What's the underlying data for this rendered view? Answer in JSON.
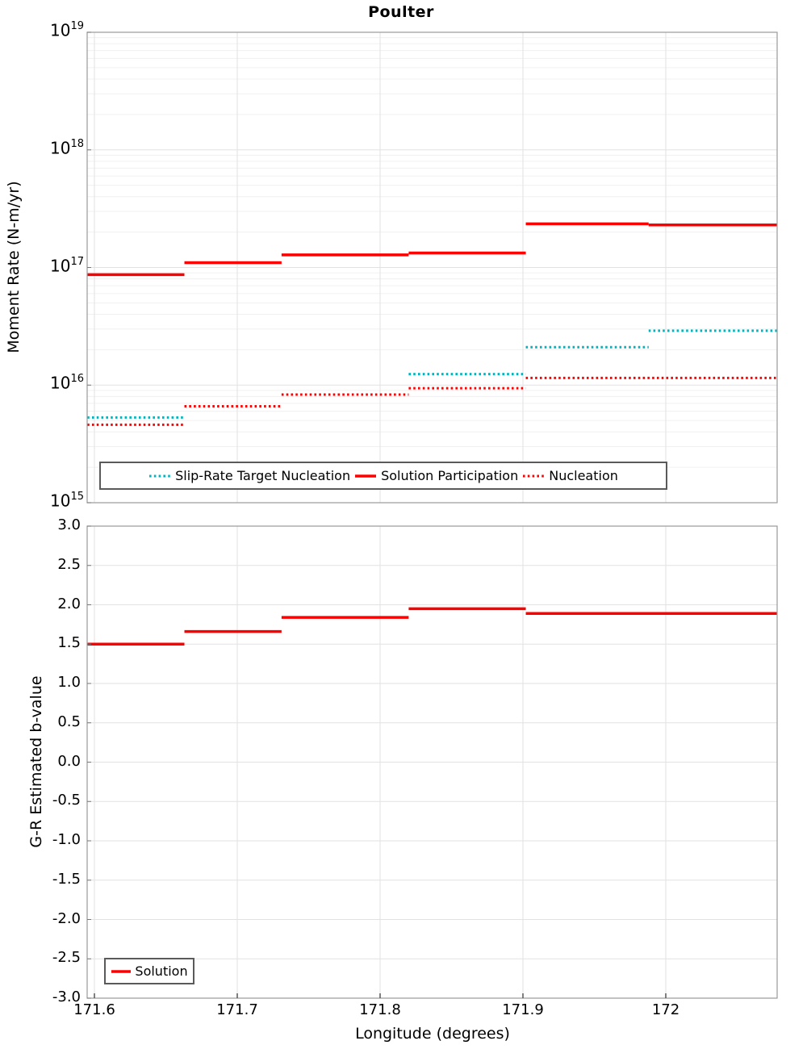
{
  "figure_title": "Poulter",
  "colors": {
    "series_red": "#FF0000",
    "series_cyan": "#00B3BC",
    "grid_minor": "#F0F0F0",
    "grid_major": "#E2E2E2",
    "plot_border": "#9A9A9A",
    "legend_border": "#5A5A5A"
  },
  "chart_data": [
    {
      "type": "line",
      "subtype": "step-segments",
      "title": "Poulter",
      "ylabel": "Moment Rate (N-m/yr)",
      "yscale": "log",
      "ylim": [
        1000000000000000.0,
        1e+19
      ],
      "y_tick_exponents": [
        19,
        18,
        17,
        16,
        15
      ],
      "xlim": [
        171.595,
        172.078
      ],
      "x_ticks": [
        {
          "label": "171.6",
          "value": 171.6
        },
        {
          "label": "171.7",
          "value": 171.7
        },
        {
          "label": "171.8",
          "value": 171.8
        },
        {
          "label": "171.9",
          "value": 171.9
        },
        {
          "label": "172",
          "value": 172.0
        }
      ],
      "grid": true,
      "legend_position": "inside-bottom-left",
      "series": [
        {
          "name": "Slip-Rate Target Nucleation",
          "color": "#00B3BC",
          "style": "dotted",
          "segments": [
            {
              "x1": 171.595,
              "x2": 171.663,
              "y": 5300000000000000.0
            },
            {
              "x1": 171.82,
              "x2": 171.902,
              "y": 1.24e+16
            },
            {
              "x1": 171.902,
              "x2": 171.988,
              "y": 2.1e+16
            },
            {
              "x1": 171.988,
              "x2": 172.078,
              "y": 2.9e+16
            }
          ]
        },
        {
          "name": "Solution Participation",
          "color": "#FF0000",
          "style": "solid",
          "segments": [
            {
              "x1": 171.595,
              "x2": 171.663,
              "y": 8.7e+16
            },
            {
              "x1": 171.663,
              "x2": 171.731,
              "y": 1.1e+17
            },
            {
              "x1": 171.731,
              "x2": 171.82,
              "y": 1.28e+17
            },
            {
              "x1": 171.82,
              "x2": 171.902,
              "y": 1.33e+17
            },
            {
              "x1": 171.902,
              "x2": 171.988,
              "y": 2.35e+17
            },
            {
              "x1": 171.988,
              "x2": 172.078,
              "y": 2.3e+17
            }
          ]
        },
        {
          "name": "Nucleation",
          "color": "#FF0000",
          "style": "dotted",
          "segments": [
            {
              "x1": 171.595,
              "x2": 171.663,
              "y": 4600000000000000.0
            },
            {
              "x1": 171.663,
              "x2": 171.731,
              "y": 6600000000000000.0
            },
            {
              "x1": 171.731,
              "x2": 171.82,
              "y": 8300000000000000.0
            },
            {
              "x1": 171.82,
              "x2": 171.902,
              "y": 9400000000000000.0
            },
            {
              "x1": 171.902,
              "x2": 172.078,
              "y": 1.15e+16
            }
          ]
        }
      ]
    },
    {
      "type": "line",
      "subtype": "step-segments",
      "ylabel": "G-R Estimated b-value",
      "xlabel": "Longitude (degrees)",
      "ylim": [
        -3.0,
        3.0
      ],
      "y_ticks": [
        "3.0",
        "2.5",
        "2.0",
        "1.5",
        "1.0",
        "0.5",
        "0.0",
        "-0.5",
        "-1.0",
        "-1.5",
        "-2.0",
        "-2.5",
        "-3.0"
      ],
      "xlim": [
        171.595,
        172.078
      ],
      "x_ticks": [
        {
          "label": "171.6",
          "value": 171.6
        },
        {
          "label": "171.7",
          "value": 171.7
        },
        {
          "label": "171.8",
          "value": 171.8
        },
        {
          "label": "171.9",
          "value": 171.9
        },
        {
          "label": "172",
          "value": 172.0
        }
      ],
      "grid": true,
      "legend_position": "inside-bottom-left",
      "series": [
        {
          "name": "Solution",
          "color": "#FF0000",
          "style": "solid",
          "segments": [
            {
              "x1": 171.595,
              "x2": 171.663,
              "y": 1.5
            },
            {
              "x1": 171.663,
              "x2": 171.731,
              "y": 1.66
            },
            {
              "x1": 171.731,
              "x2": 171.82,
              "y": 1.84
            },
            {
              "x1": 171.82,
              "x2": 171.902,
              "y": 1.95
            },
            {
              "x1": 171.902,
              "x2": 172.078,
              "y": 1.89
            }
          ]
        }
      ]
    }
  ]
}
